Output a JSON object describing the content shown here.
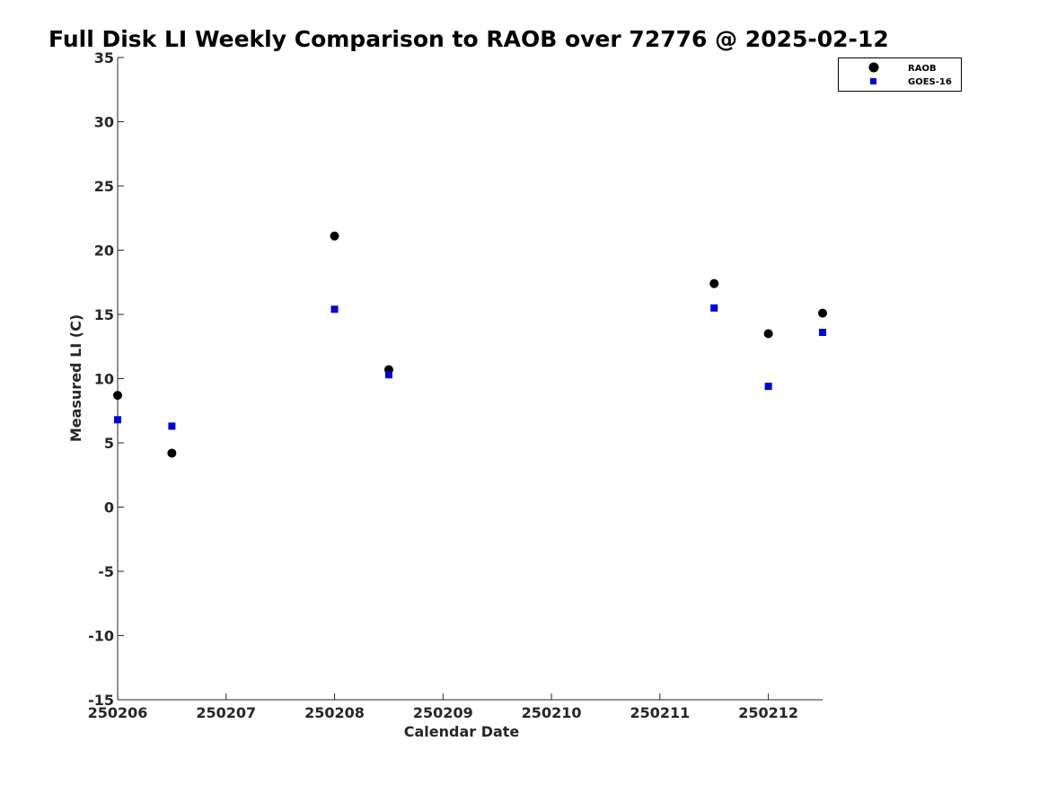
{
  "chart_data": {
    "type": "scatter",
    "title": "Full Disk LI Weekly Comparison to RAOB over 72776 @ 2025-02-12",
    "xlabel": "Calendar Date",
    "ylabel": "Measured LI (C)",
    "xlim": [
      250206,
      250212.5
    ],
    "ylim": [
      -15,
      35
    ],
    "xticks": [
      250206,
      250207,
      250208,
      250209,
      250210,
      250211,
      250212
    ],
    "xtick_labels": [
      "250206",
      "250207",
      "250208",
      "250209",
      "250210",
      "250211",
      "250212"
    ],
    "yticks": [
      -15,
      -10,
      -5,
      0,
      5,
      10,
      15,
      20,
      25,
      30,
      35
    ],
    "ytick_labels": [
      "-15",
      "-10",
      "-5",
      "0",
      "5",
      "10",
      "15",
      "20",
      "25",
      "30",
      "35"
    ],
    "grid": false,
    "legend_position": "top-right",
    "series": [
      {
        "name": "RAOB",
        "marker": "circle",
        "color": "#000000",
        "x": [
          250206,
          250206.5,
          250208,
          250208.5,
          250211.5,
          250212,
          250212.5
        ],
        "y": [
          8.7,
          4.2,
          21.1,
          10.7,
          17.4,
          13.5,
          15.1
        ]
      },
      {
        "name": "GOES-16",
        "marker": "square",
        "color": "#0000dd",
        "x": [
          250206,
          250206.5,
          250208,
          250208.5,
          250211.5,
          250212,
          250212.5
        ],
        "y": [
          6.8,
          6.3,
          15.4,
          10.3,
          15.5,
          9.4,
          13.6
        ]
      }
    ]
  }
}
